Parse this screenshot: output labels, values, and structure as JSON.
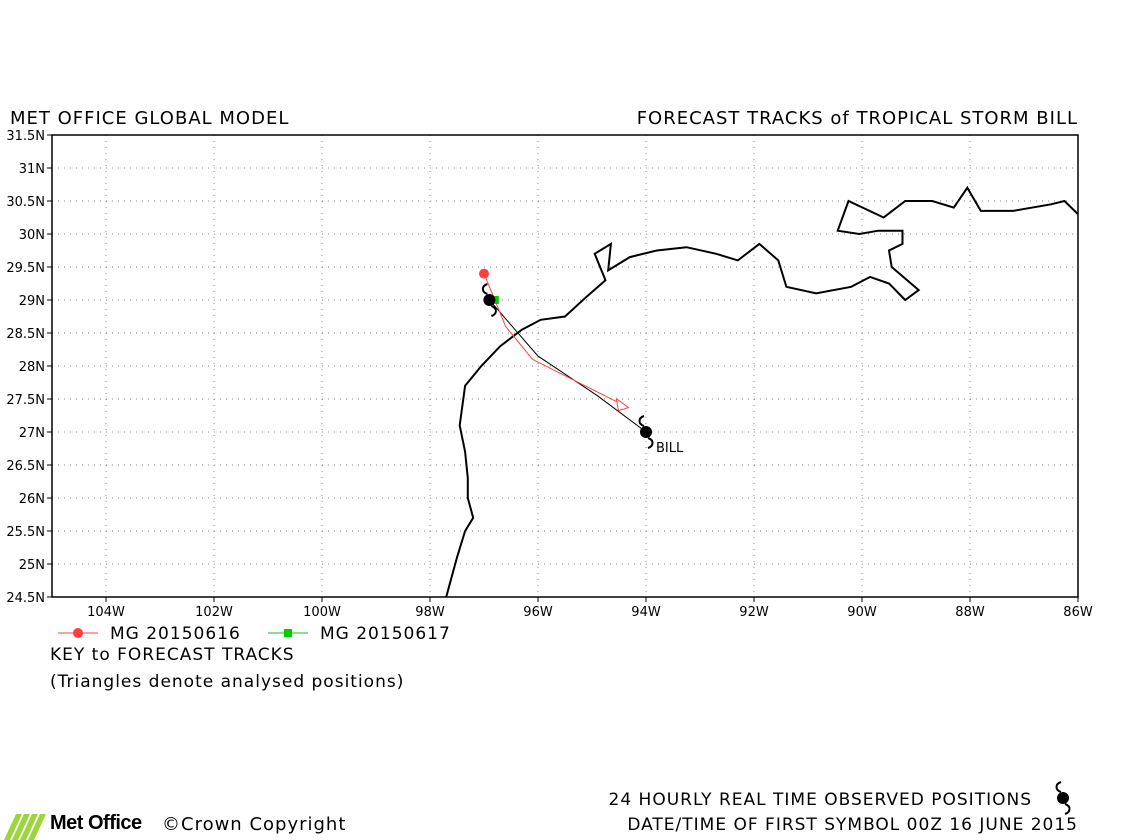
{
  "header": {
    "left_title": "MET OFFICE GLOBAL MODEL",
    "right_title": "FORECAST TRACKS of TROPICAL STORM BILL"
  },
  "chart_data": {
    "type": "scatter",
    "xlim": [
      -105,
      -86
    ],
    "ylim": [
      24.5,
      31.5
    ],
    "x_ticks": [
      -104,
      -102,
      -100,
      -98,
      -96,
      -94,
      -92,
      -90,
      -88,
      -86
    ],
    "x_tick_labels": [
      "104W",
      "102W",
      "100W",
      "98W",
      "96W",
      "94W",
      "92W",
      "90W",
      "88W",
      "86W"
    ],
    "y_ticks": [
      24.5,
      25,
      25.5,
      26,
      26.5,
      27,
      27.5,
      28,
      28.5,
      29,
      29.5,
      30,
      30.5,
      31,
      31.5
    ],
    "y_tick_labels": [
      "24.5N",
      "25N",
      "25.5N",
      "26N",
      "26.5N",
      "27N",
      "27.5N",
      "28N",
      "28.5N",
      "29N",
      "29.5N",
      "30N",
      "30.5N",
      "31N",
      "31.5N"
    ],
    "grid": true,
    "coastline": [
      [
        -97.7,
        24.5
      ],
      [
        -97.6,
        24.8
      ],
      [
        -97.5,
        25.1
      ],
      [
        -97.35,
        25.5
      ],
      [
        -97.2,
        25.7
      ],
      [
        -97.3,
        26.0
      ],
      [
        -97.3,
        26.3
      ],
      [
        -97.35,
        26.7
      ],
      [
        -97.45,
        27.1
      ],
      [
        -97.35,
        27.7
      ],
      [
        -97.05,
        28.0
      ],
      [
        -96.7,
        28.3
      ],
      [
        -96.3,
        28.55
      ],
      [
        -95.95,
        28.7
      ],
      [
        -95.5,
        28.75
      ],
      [
        -95.1,
        29.05
      ],
      [
        -94.75,
        29.3
      ],
      [
        -94.95,
        29.7
      ],
      [
        -94.65,
        29.85
      ],
      [
        -94.7,
        29.45
      ],
      [
        -94.3,
        29.65
      ],
      [
        -93.8,
        29.75
      ],
      [
        -93.25,
        29.8
      ],
      [
        -92.7,
        29.7
      ],
      [
        -92.3,
        29.6
      ],
      [
        -91.9,
        29.85
      ],
      [
        -91.55,
        29.6
      ],
      [
        -91.4,
        29.2
      ],
      [
        -90.85,
        29.1
      ],
      [
        -90.2,
        29.2
      ],
      [
        -89.85,
        29.35
      ],
      [
        -89.5,
        29.25
      ],
      [
        -89.2,
        29.0
      ],
      [
        -88.95,
        29.15
      ],
      [
        -89.45,
        29.5
      ],
      [
        -89.5,
        29.75
      ],
      [
        -89.25,
        29.85
      ],
      [
        -89.25,
        30.05
      ],
      [
        -89.7,
        30.05
      ],
      [
        -90.05,
        30.0
      ],
      [
        -90.45,
        30.05
      ],
      [
        -90.25,
        30.5
      ],
      [
        -89.6,
        30.25
      ],
      [
        -89.2,
        30.5
      ],
      [
        -88.7,
        30.5
      ],
      [
        -88.3,
        30.4
      ],
      [
        -88.05,
        30.7
      ],
      [
        -87.8,
        30.35
      ],
      [
        -87.2,
        30.35
      ],
      [
        -86.5,
        30.45
      ],
      [
        -86.25,
        30.5
      ],
      [
        -86.0,
        30.3
      ]
    ],
    "series": [
      {
        "name": "MG 20150616",
        "color": "#ff4040",
        "marker": "circle",
        "track": [
          [
            -97.0,
            29.4
          ],
          [
            -96.6,
            28.6
          ],
          [
            -96.1,
            28.1
          ],
          [
            -94.4,
            27.4
          ]
        ],
        "analysed_end": [
          -94.4,
          27.4
        ]
      },
      {
        "name": "MG 20150617",
        "color": "#00cc00",
        "marker": "square",
        "track": [
          [
            -96.8,
            29.0
          ]
        ]
      }
    ],
    "observed_track": [
      [
        -96.9,
        29.0
      ],
      [
        -96.0,
        28.15
      ],
      [
        -94.9,
        27.55
      ],
      [
        -94.0,
        27.0
      ]
    ],
    "storm_symbols": [
      {
        "x": -96.9,
        "y": 29.0
      },
      {
        "x": -94.0,
        "y": 27.0,
        "label": "BILL"
      }
    ]
  },
  "legend": {
    "items": [
      {
        "label": "MG 20150616",
        "color": "#ff4040"
      },
      {
        "label": "MG 20150617",
        "color": "#00cc00"
      }
    ],
    "key_title": "KEY to FORECAST TRACKS",
    "note": "(Triangles denote analysed positions)"
  },
  "footer": {
    "logo": "Met Office",
    "copyright": "©Crown Copyright",
    "observed": "24 HOURLY REAL TIME OBSERVED POSITIONS",
    "datetime": "DATE/TIME OF FIRST SYMBOL 00Z 16 JUNE 2015"
  }
}
